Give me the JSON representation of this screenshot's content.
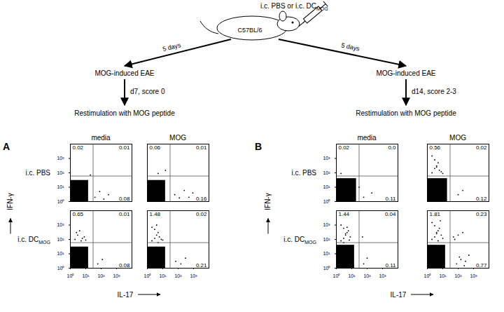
{
  "diagram": {
    "injection": {
      "text": "i.c. PBS or i.c. DC",
      "sub": "MOG"
    },
    "mouse": "C57BL/6",
    "branches": [
      {
        "interval": "5 days",
        "model": "MOG-induced EAE",
        "status": "d7, score 0",
        "assay": "Restimulation with MOG peptide"
      },
      {
        "interval": "5 days",
        "model": "MOG-induced EAE",
        "status": "d14, score 2-3",
        "assay": "Restimulation with MOG peptide"
      }
    ]
  },
  "figure": {
    "x_label": "IL-17",
    "y_label": "IFN-γ",
    "groups": [
      {
        "letter": "A",
        "rows": [
          {
            "text": "i.c. PBS"
          },
          {
            "text": "i.c. DC",
            "sub": "MOG"
          }
        ],
        "columns": [
          "media",
          "MOG"
        ]
      },
      {
        "letter": "B",
        "rows": [
          {
            "text": "i.c. PBS"
          },
          {
            "text": "i.c. DC",
            "sub": "MOG"
          }
        ],
        "columns": [
          "media",
          "MOG"
        ]
      }
    ]
  },
  "chart_data": [
    {
      "type": "scatter",
      "log": true,
      "xlim": [
        1,
        10000
      ],
      "ylim": [
        1,
        10000
      ],
      "xticks": [
        {
          "value": 1,
          "label": "10⁰"
        },
        {
          "value": 10,
          "label": "10¹"
        },
        {
          "value": 100,
          "label": "10²"
        },
        {
          "value": 1000,
          "label": "10³"
        }
      ],
      "yticks": [
        {
          "value": 1,
          "label": "10⁰"
        },
        {
          "value": 10,
          "label": "10¹"
        },
        {
          "value": 100,
          "label": "10²"
        },
        {
          "value": 1000,
          "label": "10³"
        }
      ],
      "tick_labels": "y",
      "gate": {
        "x": 30,
        "y": 60
      },
      "clusters": [
        {
          "x": [
            1,
            15
          ],
          "y": [
            1,
            30
          ]
        }
      ],
      "x": [
        40,
        80,
        150,
        300,
        20
      ],
      "values": [
        2,
        5,
        1.5,
        3,
        70
      ],
      "quadrants": {
        "values": [
          0.02,
          0.01,
          0.08
        ]
      }
    },
    {
      "type": "scatter",
      "log": true,
      "xlim": [
        1,
        10000
      ],
      "ylim": [
        1,
        10000
      ],
      "xticks": [
        {
          "value": 1,
          "label": "10⁰"
        },
        {
          "value": 10,
          "label": "10¹"
        },
        {
          "value": 100,
          "label": "10²"
        },
        {
          "value": 1000,
          "label": "10³"
        }
      ],
      "yticks": [
        {
          "value": 1,
          "label": "10⁰"
        },
        {
          "value": 10,
          "label": "10¹"
        },
        {
          "value": 100,
          "label": "10²"
        },
        {
          "value": 1000,
          "label": "10³"
        }
      ],
      "tick_labels": false,
      "gate": {
        "x": 30,
        "y": 60
      },
      "clusters": [
        {
          "x": [
            1,
            15
          ],
          "y": [
            1,
            30
          ]
        }
      ],
      "x": [
        60,
        120,
        250,
        500,
        5,
        15,
        900
      ],
      "values": [
        3,
        1.8,
        6,
        2,
        90,
        150,
        4
      ],
      "quadrants": {
        "values": [
          0.06,
          0.01,
          0.16
        ]
      }
    },
    {
      "type": "scatter",
      "log": true,
      "xlim": [
        1,
        10000
      ],
      "ylim": [
        1,
        10000
      ],
      "xticks": [
        {
          "value": 1,
          "label": "10⁰"
        },
        {
          "value": 10,
          "label": "10¹"
        },
        {
          "value": 100,
          "label": "10²"
        },
        {
          "value": 1000,
          "label": "10³"
        }
      ],
      "yticks": [
        {
          "value": 1,
          "label": "10⁰"
        },
        {
          "value": 10,
          "label": "10¹"
        },
        {
          "value": 100,
          "label": "10²"
        },
        {
          "value": 1000,
          "label": "10³"
        }
      ],
      "gate": {
        "x": 30,
        "y": 60
      },
      "clusters": [
        {
          "x": [
            1,
            15
          ],
          "y": [
            1,
            30
          ]
        }
      ],
      "x": [
        2,
        3,
        5,
        8,
        4,
        6,
        2.5,
        10,
        60,
        120
      ],
      "values": [
        100,
        200,
        80,
        150,
        400,
        120,
        300,
        90,
        2,
        4
      ],
      "quadrants": {
        "values": [
          0.65,
          0.01,
          0.08
        ]
      }
    },
    {
      "type": "scatter",
      "log": true,
      "xlim": [
        1,
        10000
      ],
      "ylim": [
        1,
        10000
      ],
      "xticks": [
        {
          "value": 1,
          "label": "10⁰"
        },
        {
          "value": 10,
          "label": "10¹"
        },
        {
          "value": 100,
          "label": "10²"
        },
        {
          "value": 1000,
          "label": "10³"
        }
      ],
      "yticks": [
        {
          "value": 1,
          "label": "10⁰"
        },
        {
          "value": 10,
          "label": "10¹"
        },
        {
          "value": 100,
          "label": "10²"
        },
        {
          "value": 1000,
          "label": "10³"
        }
      ],
      "tick_labels": "x",
      "gate": {
        "x": 30,
        "y": 60
      },
      "clusters": [
        {
          "x": [
            1,
            15
          ],
          "y": [
            1,
            30
          ]
        }
      ],
      "x": [
        2,
        3,
        4,
        5,
        6,
        8,
        3,
        2,
        10,
        4,
        5,
        70,
        150,
        300
      ],
      "values": [
        80,
        120,
        200,
        300,
        150,
        100,
        500,
        700,
        90,
        1000,
        60,
        3,
        2,
        5
      ],
      "quadrants": {
        "values": [
          1.48,
          0.02,
          0.21
        ]
      }
    },
    {
      "type": "scatter",
      "log": true,
      "xlim": [
        1,
        10000
      ],
      "ylim": [
        1,
        10000
      ],
      "xticks": [
        {
          "value": 1,
          "label": "10⁰"
        },
        {
          "value": 10,
          "label": "10¹"
        },
        {
          "value": 100,
          "label": "10²"
        },
        {
          "value": 1000,
          "label": "10³"
        }
      ],
      "yticks": [
        {
          "value": 1,
          "label": "10⁰"
        },
        {
          "value": 10,
          "label": "10¹"
        },
        {
          "value": 100,
          "label": "10²"
        },
        {
          "value": 1000,
          "label": "10³"
        }
      ],
      "tick_labels": "y",
      "gate": {
        "x": 30,
        "y": 60
      },
      "clusters": [
        {
          "x": [
            1,
            20
          ],
          "y": [
            1,
            40
          ]
        }
      ],
      "x": [
        60,
        200,
        30,
        2
      ],
      "values": [
        2,
        4,
        10,
        90
      ],
      "quadrants": {
        "values": [
          0.02,
          0,
          0.11
        ],
        "value_labels": [
          "0.02",
          "0.0",
          "0.11"
        ]
      }
    },
    {
      "type": "scatter",
      "log": true,
      "xlim": [
        1,
        10000
      ],
      "ylim": [
        1,
        10000
      ],
      "xticks": [
        {
          "value": 1,
          "label": "10⁰"
        },
        {
          "value": 10,
          "label": "10¹"
        },
        {
          "value": 100,
          "label": "10²"
        },
        {
          "value": 1000,
          "label": "10³"
        }
      ],
      "yticks": [
        {
          "value": 1,
          "label": "10⁰"
        },
        {
          "value": 10,
          "label": "10¹"
        },
        {
          "value": 100,
          "label": "10²"
        },
        {
          "value": 1000,
          "label": "10³"
        }
      ],
      "tick_labels": false,
      "gate": {
        "x": 30,
        "y": 60
      },
      "clusters": [
        {
          "x": [
            1,
            20
          ],
          "y": [
            1,
            40
          ]
        }
      ],
      "x": [
        2,
        3,
        4,
        6,
        5,
        3,
        8,
        2,
        10,
        4,
        100,
        200
      ],
      "values": [
        100,
        200,
        300,
        150,
        500,
        800,
        120,
        1500,
        90,
        250,
        3,
        6
      ],
      "quadrants": {
        "values": [
          0.56,
          0.02,
          0.12
        ]
      }
    },
    {
      "type": "scatter",
      "log": true,
      "xlim": [
        1,
        10000
      ],
      "ylim": [
        1,
        10000
      ],
      "xticks": [
        {
          "value": 1,
          "label": "10⁰"
        },
        {
          "value": 10,
          "label": "10¹"
        },
        {
          "value": 100,
          "label": "10²"
        },
        {
          "value": 1000,
          "label": "10³"
        }
      ],
      "yticks": [
        {
          "value": 1,
          "label": "10⁰"
        },
        {
          "value": 10,
          "label": "10¹"
        },
        {
          "value": 100,
          "label": "10²"
        },
        {
          "value": 1000,
          "label": "10³"
        }
      ],
      "gate": {
        "x": 30,
        "y": 60
      },
      "clusters": [
        {
          "x": [
            1,
            15
          ],
          "y": [
            1,
            40
          ]
        }
      ],
      "x": [
        2,
        3,
        4,
        5,
        6,
        3,
        2,
        8,
        4,
        7,
        5,
        3,
        60,
        100,
        50
      ],
      "values": [
        80,
        120,
        200,
        300,
        400,
        600,
        1000,
        150,
        250,
        90,
        700,
        60,
        2,
        5,
        150
      ],
      "quadrants": {
        "values": [
          1.44,
          0.04,
          0.11
        ]
      }
    },
    {
      "type": "scatter",
      "log": true,
      "xlim": [
        1,
        10000
      ],
      "ylim": [
        1,
        10000
      ],
      "xticks": [
        {
          "value": 1,
          "label": "10⁰"
        },
        {
          "value": 10,
          "label": "10¹"
        },
        {
          "value": 100,
          "label": "10²"
        },
        {
          "value": 1000,
          "label": "10³"
        }
      ],
      "yticks": [
        {
          "value": 1,
          "label": "10⁰"
        },
        {
          "value": 10,
          "label": "10¹"
        },
        {
          "value": 100,
          "label": "10²"
        },
        {
          "value": 1000,
          "label": "10³"
        }
      ],
      "tick_labels": "x",
      "gate": {
        "x": 30,
        "y": 60
      },
      "clusters": [
        {
          "x": [
            1,
            15
          ],
          "y": [
            1,
            40
          ]
        }
      ],
      "x": [
        2,
        3,
        4,
        5,
        6,
        8,
        3,
        2,
        10,
        4,
        5,
        7,
        60,
        100,
        200,
        80,
        150,
        300,
        500,
        50,
        120,
        250
      ],
      "values": [
        100,
        150,
        250,
        400,
        600,
        200,
        900,
        1500,
        120,
        300,
        80,
        2000,
        100,
        200,
        300,
        2,
        4,
        3,
        8,
        150,
        6,
        1.5
      ],
      "quadrants": {
        "values": [
          1.81,
          0.23,
          0.77
        ]
      }
    }
  ]
}
